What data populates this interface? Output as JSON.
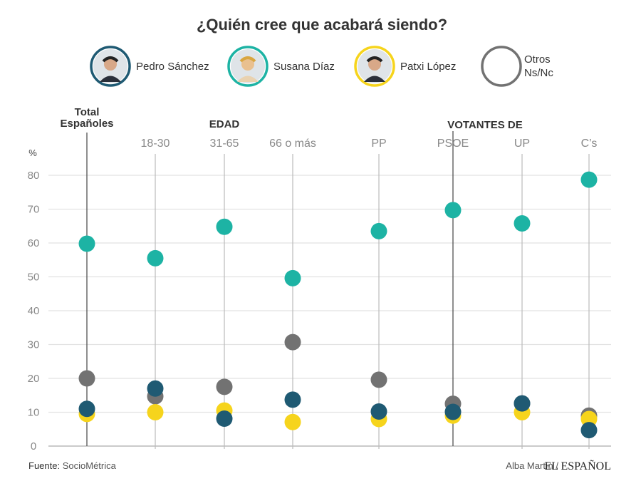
{
  "chart_data": {
    "type": "scatter",
    "title": "¿Quién cree que acabará siendo?",
    "ylabel": "%",
    "ylim": [
      0,
      80
    ],
    "yticks": [
      0,
      10,
      20,
      30,
      40,
      50,
      60,
      70,
      80
    ],
    "grid": true,
    "legend_placement": "top",
    "groups": [
      {
        "label": "Total Españoles",
        "lines": [
          "Total",
          "Españoles"
        ]
      },
      {
        "label": "EDAD"
      },
      {
        "label": "VOTANTES DE"
      }
    ],
    "categories": [
      "",
      "18-30",
      "31-65",
      "66 o más",
      "PP",
      "PSOE",
      "UP",
      "C’s"
    ],
    "series": [
      {
        "name": "Otros Ns/Nc",
        "color": "#727272",
        "values": [
          20,
          14.7,
          17.5,
          30.7,
          19.6,
          12.5,
          12.6,
          9
        ]
      },
      {
        "name": "Patxi López",
        "color": "#f6d41c",
        "values": [
          9.5,
          10,
          10.5,
          7.1,
          8,
          9,
          10,
          8
        ]
      },
      {
        "name": "Susana Díaz",
        "color": "#1db3a4",
        "values": [
          59.8,
          55.5,
          64.8,
          49.6,
          63.5,
          69.7,
          65.8,
          78.7
        ]
      },
      {
        "name": "Pedro Sánchez",
        "color": "#1f5a73",
        "values": [
          11,
          17,
          8.1,
          13.7,
          10.2,
          10.1,
          12.6,
          4.7
        ]
      }
    ]
  },
  "legend": [
    {
      "name": "Pedro Sánchez",
      "color": "#1f5a73",
      "photo": true
    },
    {
      "name": "Susana Díaz",
      "color": "#1db3a4",
      "photo": true
    },
    {
      "name": "Patxi López",
      "color": "#f6d41c",
      "photo": true
    },
    {
      "name": "Otros",
      "name2": "Ns/Nc",
      "color": "#727272",
      "photo": false
    }
  ],
  "footer": {
    "source_label": "Fuente:",
    "source": "SocioMétrica",
    "author": "Alba Martín /",
    "logo": "EL ESPAÑOL"
  }
}
